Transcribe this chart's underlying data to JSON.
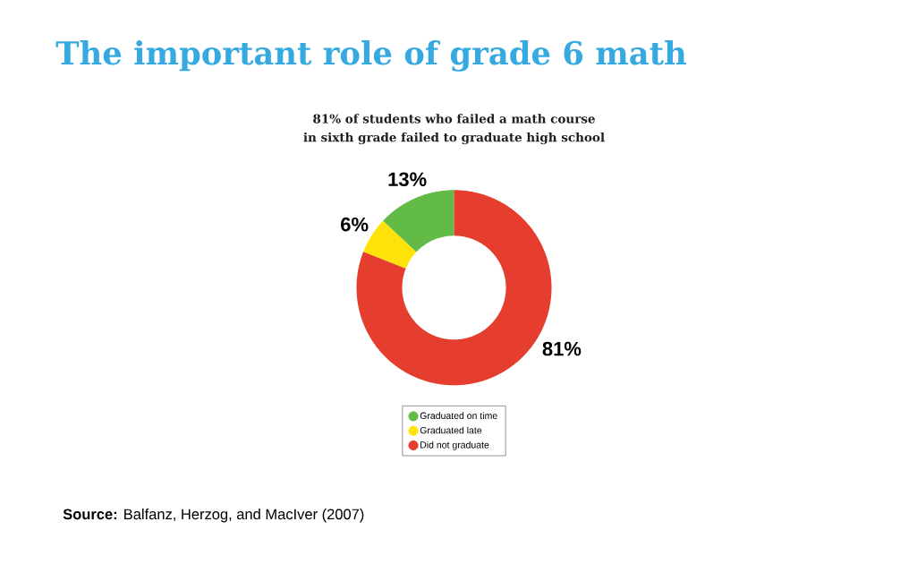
{
  "chart_data": {
    "type": "donut",
    "title": "The important role of grade 6 math",
    "subtitle": "81% of students who failed a math course in sixth grade failed to graduate high school",
    "categories": [
      "Graduated on time",
      "Graduated late",
      "Did not graduate"
    ],
    "values": [
      13,
      6,
      81
    ],
    "colors": [
      "#62bb46",
      "#ffe20a",
      "#e53e2e"
    ],
    "value_labels": [
      "13%",
      "6%",
      "81%"
    ],
    "legend": "bottom",
    "annotations": [
      "**Source:** Balfanz, Herzog, and MacIver (2007)"
    ]
  }
}
